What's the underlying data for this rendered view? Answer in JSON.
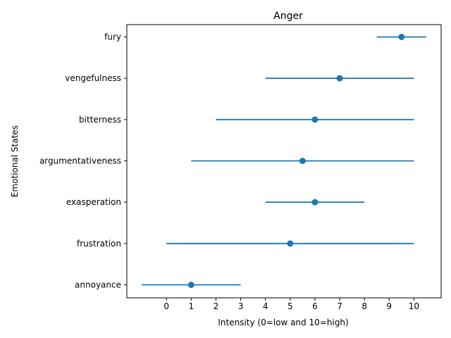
{
  "chart_data": {
    "type": "errorbar",
    "title": "Anger",
    "xlabel": "Intensity (0=low and 10=high)",
    "ylabel": "Emotional States",
    "xlim": [
      -1.6,
      11.1
    ],
    "xticks": [
      0,
      1,
      2,
      3,
      4,
      5,
      6,
      7,
      8,
      9,
      10
    ],
    "grid": false,
    "color": "#1f77b4",
    "categories": [
      "annoyance",
      "frustration",
      "exasperation",
      "argumentativeness",
      "bitterness",
      "vengefulness",
      "fury"
    ],
    "values": [
      1,
      5,
      6,
      5.5,
      6,
      7,
      9.5
    ],
    "error_low": [
      -1,
      0,
      4,
      1,
      2,
      4,
      8.5
    ],
    "error_high": [
      3,
      10,
      8,
      10,
      10,
      10,
      10.5
    ]
  }
}
